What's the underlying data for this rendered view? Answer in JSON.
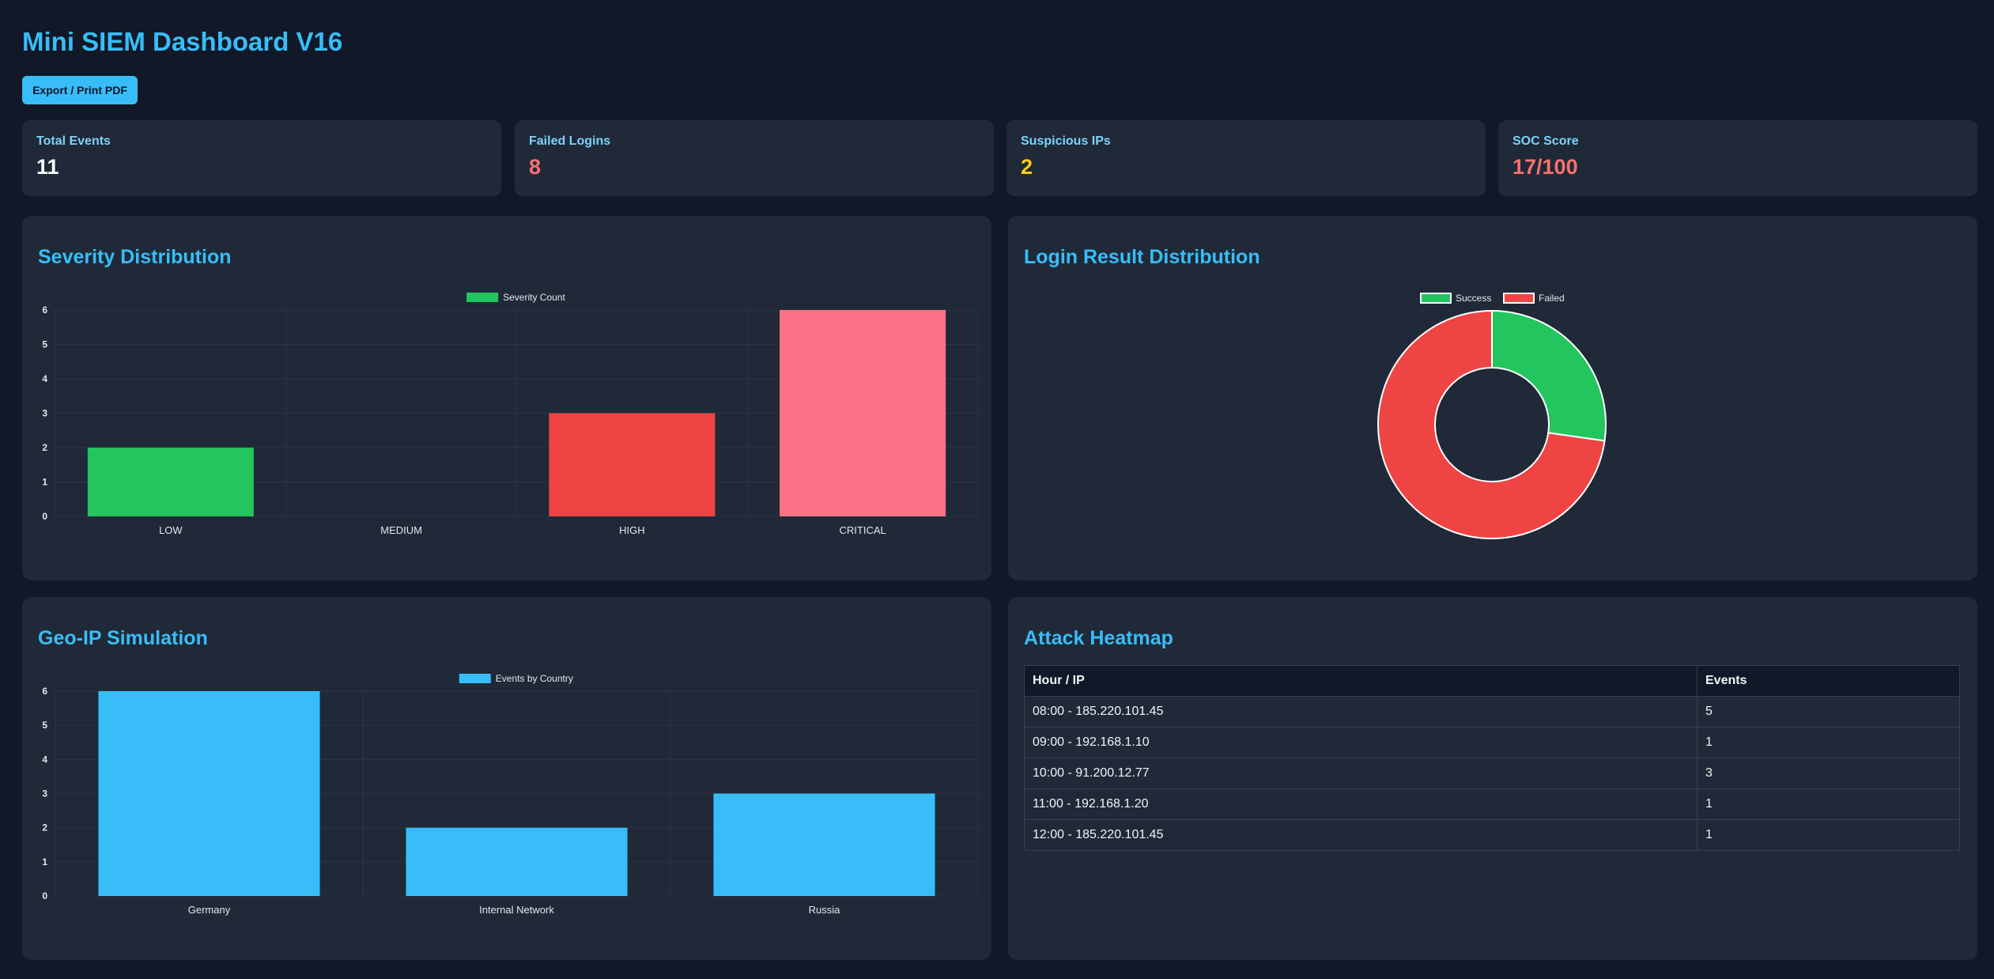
{
  "header": {
    "title": "Mini SIEM Dashboard V16",
    "export_label": "Export / Print PDF"
  },
  "kpis": [
    {
      "label": "Total Events",
      "value": "11",
      "color": "#ffffff"
    },
    {
      "label": "Failed Logins",
      "value": "8",
      "color": "#f87171"
    },
    {
      "label": "Suspicious IPs",
      "value": "2",
      "color": "#facc15"
    },
    {
      "label": "SOC Score",
      "value": "17/100",
      "color": "#f87171"
    }
  ],
  "panels": {
    "severity_title": "Severity Distribution",
    "login_title": "Login Result Distribution",
    "geo_title": "Geo-IP Simulation",
    "heatmap_title": "Attack Heatmap"
  },
  "chart_data": [
    {
      "id": "severity",
      "type": "bar",
      "categories": [
        "LOW",
        "MEDIUM",
        "HIGH",
        "CRITICAL"
      ],
      "series": [
        {
          "name": "Severity Count",
          "values": [
            2,
            0,
            3,
            6
          ]
        }
      ],
      "bar_colors": [
        "#22c55e",
        "#f59e0b",
        "#ef4444",
        "#fb7185"
      ],
      "legend_color": "#22c55e",
      "yticks": [
        "0",
        "1",
        "2",
        "3",
        "4",
        "5",
        "6"
      ],
      "ylim": [
        0,
        6
      ],
      "legend": "top-center",
      "grid": true
    },
    {
      "id": "login",
      "type": "pie",
      "categories": [
        "Success",
        "Failed"
      ],
      "values": [
        3,
        8
      ],
      "colors": [
        "#22c55e",
        "#ef4444"
      ],
      "legend": "top-center",
      "donut": true
    },
    {
      "id": "geo",
      "type": "bar",
      "categories": [
        "Germany",
        "Internal Network",
        "Russia"
      ],
      "series": [
        {
          "name": "Events by Country",
          "values": [
            6,
            2,
            3
          ]
        }
      ],
      "bar_colors": [
        "#38bdf8",
        "#38bdf8",
        "#38bdf8"
      ],
      "legend_color": "#38bdf8",
      "yticks": [
        "0",
        "1",
        "2",
        "3",
        "4",
        "5",
        "6"
      ],
      "ylim": [
        0,
        6
      ],
      "legend": "top-center",
      "grid": true
    }
  ],
  "heatmap": {
    "headers": [
      "Hour / IP",
      "Events"
    ],
    "rows": [
      [
        "08:00 - 185.220.101.45",
        "5"
      ],
      [
        "09:00 - 192.168.1.10",
        "1"
      ],
      [
        "10:00 - 91.200.12.77",
        "3"
      ],
      [
        "11:00 - 192.168.1.20",
        "1"
      ],
      [
        "12:00 - 185.220.101.45",
        "1"
      ]
    ]
  }
}
